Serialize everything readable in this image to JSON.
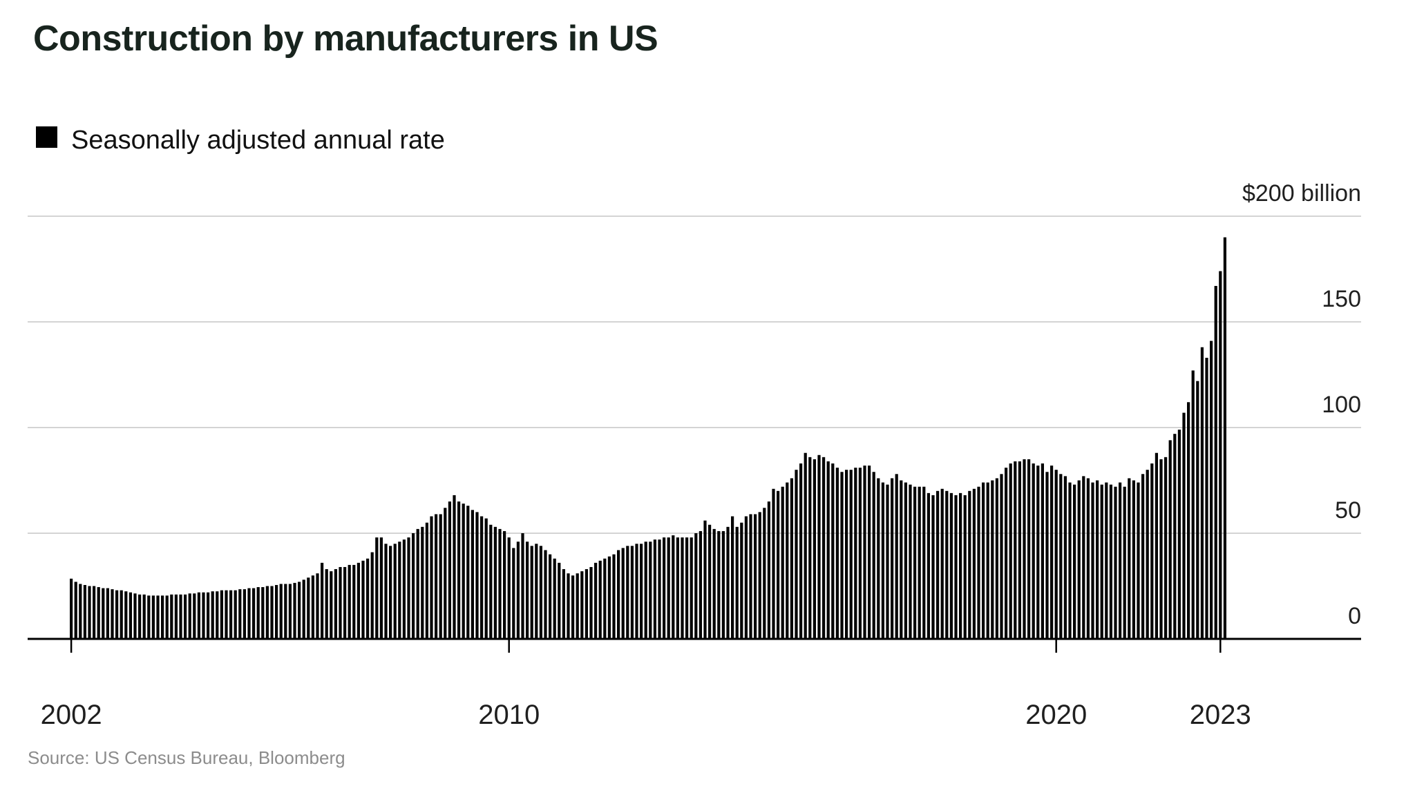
{
  "page": {
    "title": "Construction by manufacturers in US",
    "source": "Source: US Census Bureau, Bloomberg"
  },
  "legend": {
    "label": "Seasonally adjusted annual rate",
    "swatch_color": "#000000"
  },
  "colors": {
    "background": "#ffffff",
    "title": "#18241e",
    "bar": "#000000",
    "gridline": "#d4d4d4",
    "axis": "#000000",
    "axis_label": "#1f1f1f",
    "source": "#8c8c8c"
  },
  "chart_data": {
    "type": "bar",
    "title": "Construction by manufacturers in US",
    "series_name": "Seasonally adjusted annual rate",
    "unit": "USD billions, seasonally adjusted annual rate",
    "frequency": "monthly",
    "start_month": "2002-01",
    "end_month": "2023-02",
    "ylim": [
      0,
      210
    ],
    "grid": true,
    "y_axis": {
      "ticks": [
        0,
        50,
        100,
        150,
        200
      ],
      "top_label": "$200 billion",
      "labels_position": "right"
    },
    "x_axis": {
      "tick_labels": [
        "2002",
        "2010",
        "2020",
        "2023"
      ],
      "tick_month_indices": [
        0,
        96,
        216,
        252
      ]
    },
    "values": [
      28.5,
      27,
      26,
      25.5,
      25,
      25,
      24.5,
      24,
      24,
      23.5,
      23,
      23,
      22.5,
      22,
      21.5,
      21,
      21,
      20.5,
      20.5,
      20.5,
      20.5,
      20.5,
      21,
      21,
      21,
      21,
      21.5,
      21.5,
      22,
      22,
      22,
      22.5,
      22.5,
      23,
      23,
      23,
      23,
      23.5,
      23.5,
      24,
      24,
      24.5,
      24.5,
      25,
      25,
      25.5,
      26,
      26,
      26,
      26.5,
      27,
      28,
      29,
      30,
      31,
      36,
      33,
      32,
      33,
      34,
      34,
      35,
      35,
      36,
      37,
      38,
      41,
      48,
      48,
      45,
      44,
      45,
      46,
      47,
      48,
      50,
      52,
      53,
      55,
      58,
      59,
      59,
      62,
      65,
      68,
      65,
      64,
      63,
      61,
      60,
      58,
      57,
      54,
      53,
      52,
      51,
      48,
      43,
      46,
      50,
      46,
      44,
      45,
      44,
      42,
      40,
      38,
      36,
      33,
      31,
      30,
      31,
      32,
      33,
      34,
      36,
      37,
      38,
      39,
      40,
      42,
      43,
      44,
      44,
      45,
      45,
      46,
      46,
      47,
      47,
      48,
      48,
      49,
      48,
      48,
      48,
      48,
      50,
      51,
      56,
      54,
      52,
      51,
      51,
      53,
      58,
      53,
      55,
      58,
      59,
      59,
      60,
      62,
      65,
      71,
      70,
      72,
      74,
      76,
      80,
      83,
      88,
      86,
      85,
      87,
      86,
      84,
      83,
      81,
      79,
      80,
      80,
      81,
      81,
      82,
      82,
      79,
      76,
      74,
      73,
      76,
      78,
      75,
      74,
      73,
      72,
      72,
      72,
      69,
      68,
      70,
      71,
      70,
      69,
      68,
      69,
      68,
      70,
      71,
      72,
      74,
      74,
      75,
      76,
      78,
      81,
      83,
      84,
      84,
      85,
      85,
      83,
      82,
      83,
      79,
      82,
      80,
      78,
      77,
      74,
      73,
      75,
      77,
      76,
      74,
      75,
      73,
      74,
      73,
      72,
      74,
      72,
      76,
      75,
      74,
      78,
      80,
      83,
      88,
      85,
      86,
      94,
      97,
      99,
      107,
      112,
      127,
      122,
      138,
      133,
      141,
      167,
      174,
      190
    ],
    "bar_color": "#000000"
  }
}
